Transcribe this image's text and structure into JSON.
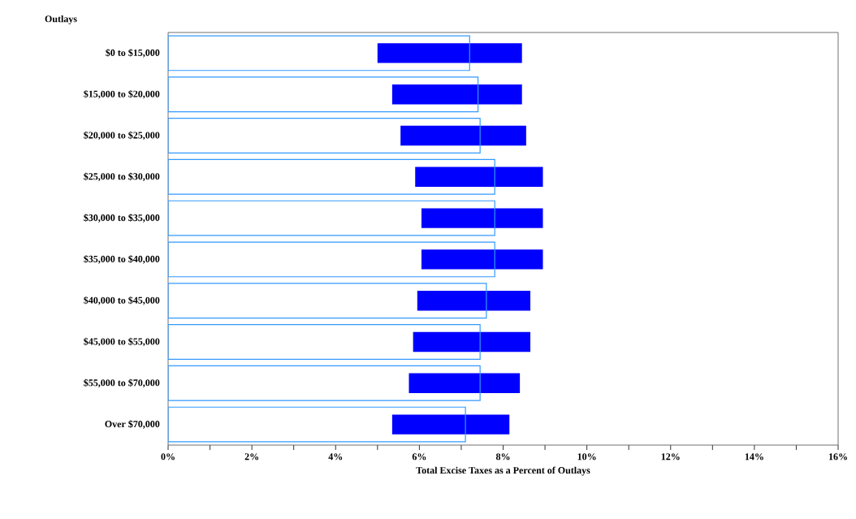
{
  "chart_data": {
    "type": "bar",
    "orientation": "horizontal",
    "ylabel": "Outlays",
    "xlabel": "Total Excise Taxes as a Percent of Outlays",
    "categories": [
      "$0 to $15,000",
      "$15,000 to $20,000",
      "$20,000 to $25,000",
      "$25,000 to $30,000",
      "$30,000 to $35,000",
      "$35,000 to $40,000",
      "$40,000 to $45,000",
      "$45,000 to $55,000",
      "$55,000 to $70,000",
      "Over $70,000"
    ],
    "series": [
      {
        "color": "#3399ff",
        "values": [
          7.2,
          7.4,
          7.45,
          7.8,
          7.8,
          7.8,
          7.6,
          7.45,
          7.45,
          7.1
        ]
      },
      {
        "color": "#0000ff",
        "base": [
          5.0,
          5.35,
          5.55,
          5.9,
          6.05,
          6.05,
          5.95,
          5.85,
          5.75,
          5.35
        ],
        "values": [
          3.45,
          3.1,
          3.0,
          3.05,
          2.9,
          2.9,
          2.7,
          2.8,
          2.65,
          2.8
        ]
      }
    ],
    "xlim": [
      0,
      16
    ],
    "xticks": [
      {
        "value": 0,
        "label": "0%"
      },
      {
        "value": 1,
        "label": null
      },
      {
        "value": 2,
        "label": "2%"
      },
      {
        "value": 3,
        "label": null
      },
      {
        "value": 4,
        "label": "4%"
      },
      {
        "value": 5,
        "label": null
      },
      {
        "value": 6,
        "label": "6%"
      },
      {
        "value": 7,
        "label": null
      },
      {
        "value": 8,
        "label": "8%"
      },
      {
        "value": 9,
        "label": null
      },
      {
        "value": 10,
        "label": "10%"
      },
      {
        "value": 11,
        "label": null
      },
      {
        "value": 12,
        "label": "12%"
      },
      {
        "value": 13,
        "label": null
      },
      {
        "value": 14,
        "label": "14%"
      },
      {
        "value": 15,
        "label": null
      },
      {
        "value": 16,
        "label": "16%"
      }
    ],
    "grid": false
  }
}
